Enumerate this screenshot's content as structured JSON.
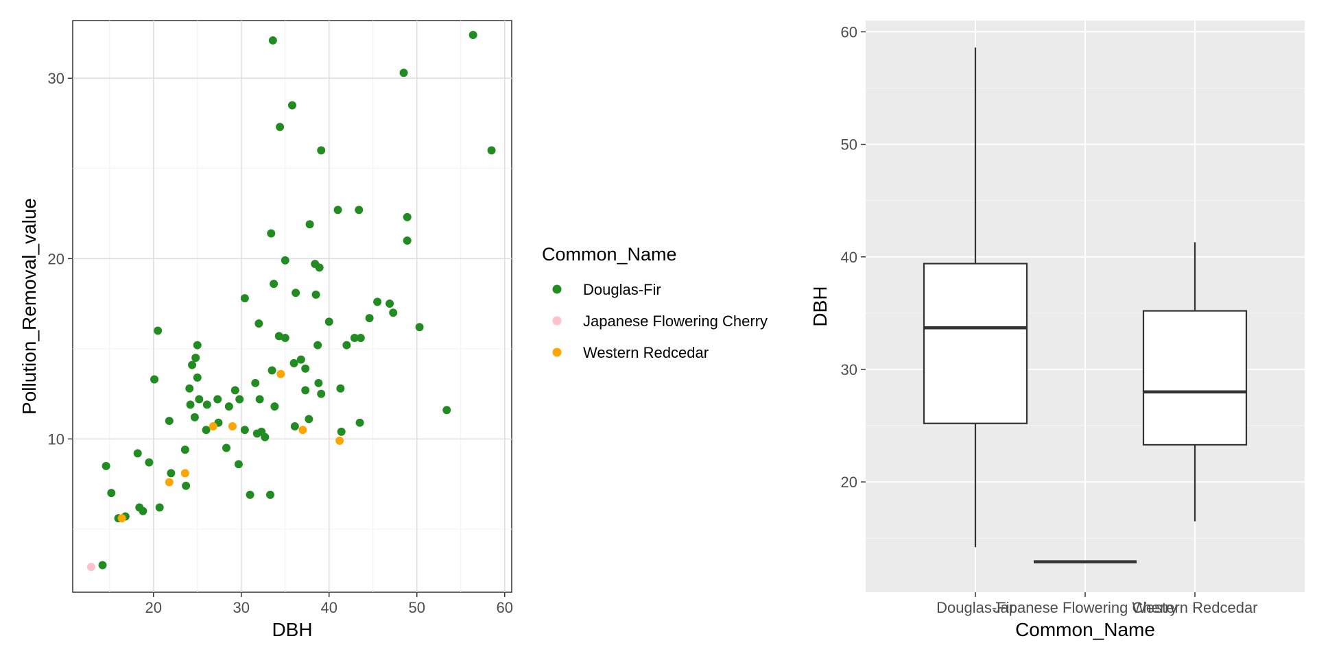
{
  "colors": {
    "Douglas-Fir": "#228B22",
    "Japanese Flowering Cherry": "#FFC0CB",
    "Western Redcedar": "#FFA500"
  },
  "chart_data": [
    {
      "type": "scatter",
      "xlabel": "DBH",
      "ylabel": "Pollution_Removal_value",
      "xlim": [
        10.8,
        60.8
      ],
      "ylim": [
        1.5,
        33.2
      ],
      "x_ticks": [
        20,
        30,
        40,
        50,
        60
      ],
      "y_ticks": [
        10,
        20,
        30
      ],
      "grid": true,
      "legend": {
        "title": "Common_Name",
        "position": "right",
        "entries": [
          "Douglas-Fir",
          "Japanese Flowering Cherry",
          "Western Redcedar"
        ]
      },
      "series": [
        {
          "name": "Douglas-Fir",
          "points": [
            [
              14.2,
              3.0
            ],
            [
              14.6,
              8.5
            ],
            [
              15.2,
              7.0
            ],
            [
              16.0,
              5.6
            ],
            [
              16.8,
              5.7
            ],
            [
              18.2,
              9.2
            ],
            [
              18.4,
              6.2
            ],
            [
              18.8,
              6.0
            ],
            [
              19.5,
              8.7
            ],
            [
              20.1,
              13.3
            ],
            [
              20.5,
              16.0
            ],
            [
              20.7,
              6.2
            ],
            [
              21.8,
              11.0
            ],
            [
              22.0,
              8.1
            ],
            [
              23.6,
              9.4
            ],
            [
              23.7,
              7.4
            ],
            [
              24.1,
              12.8
            ],
            [
              24.2,
              11.9
            ],
            [
              24.4,
              14.1
            ],
            [
              24.7,
              11.2
            ],
            [
              24.8,
              14.5
            ],
            [
              25.0,
              15.2
            ],
            [
              25.0,
              13.4
            ],
            [
              25.2,
              12.2
            ],
            [
              26.0,
              10.5
            ],
            [
              26.1,
              11.9
            ],
            [
              27.3,
              12.2
            ],
            [
              27.4,
              10.9
            ],
            [
              28.3,
              9.5
            ],
            [
              28.6,
              11.8
            ],
            [
              29.3,
              12.7
            ],
            [
              29.7,
              8.6
            ],
            [
              29.8,
              12.2
            ],
            [
              30.4,
              17.8
            ],
            [
              30.4,
              10.5
            ],
            [
              31.0,
              6.9
            ],
            [
              31.6,
              13.1
            ],
            [
              31.8,
              10.3
            ],
            [
              32.0,
              16.4
            ],
            [
              32.1,
              12.2
            ],
            [
              32.3,
              10.4
            ],
            [
              32.7,
              10.1
            ],
            [
              33.3,
              6.9
            ],
            [
              33.4,
              21.4
            ],
            [
              33.5,
              13.8
            ],
            [
              33.6,
              32.1
            ],
            [
              33.7,
              18.6
            ],
            [
              33.8,
              11.8
            ],
            [
              34.3,
              15.7
            ],
            [
              34.4,
              27.3
            ],
            [
              35.0,
              15.6
            ],
            [
              35.0,
              19.9
            ],
            [
              35.8,
              28.5
            ],
            [
              36.0,
              14.2
            ],
            [
              36.1,
              10.7
            ],
            [
              36.2,
              18.1
            ],
            [
              36.8,
              14.4
            ],
            [
              37.3,
              13.9
            ],
            [
              37.3,
              12.7
            ],
            [
              37.7,
              11.1
            ],
            [
              37.8,
              21.9
            ],
            [
              38.4,
              19.7
            ],
            [
              38.5,
              18.0
            ],
            [
              38.7,
              15.2
            ],
            [
              38.8,
              13.1
            ],
            [
              38.9,
              19.5
            ],
            [
              39.1,
              26.0
            ],
            [
              39.1,
              12.5
            ],
            [
              40.0,
              16.5
            ],
            [
              41.0,
              22.7
            ],
            [
              41.3,
              12.8
            ],
            [
              41.4,
              10.4
            ],
            [
              42.0,
              15.2
            ],
            [
              42.9,
              15.6
            ],
            [
              43.4,
              22.7
            ],
            [
              43.5,
              10.9
            ],
            [
              43.6,
              15.6
            ],
            [
              44.6,
              16.7
            ],
            [
              45.5,
              17.6
            ],
            [
              46.9,
              17.5
            ],
            [
              47.3,
              17.0
            ],
            [
              48.5,
              30.3
            ],
            [
              48.9,
              22.3
            ],
            [
              48.9,
              21.0
            ],
            [
              50.3,
              16.2
            ],
            [
              53.4,
              11.6
            ],
            [
              56.4,
              32.4
            ],
            [
              58.5,
              26.0
            ]
          ]
        },
        {
          "name": "Japanese Flowering Cherry",
          "points": [
            [
              12.9,
              2.9
            ]
          ]
        },
        {
          "name": "Western Redcedar",
          "points": [
            [
              16.4,
              5.6
            ],
            [
              21.8,
              7.6
            ],
            [
              23.6,
              8.1
            ],
            [
              26.8,
              10.7
            ],
            [
              29.0,
              10.7
            ],
            [
              34.5,
              13.6
            ],
            [
              37.0,
              10.5
            ],
            [
              41.2,
              9.9
            ]
          ]
        }
      ]
    },
    {
      "type": "box",
      "xlabel": "Common_Name",
      "ylabel": "DBH",
      "ylim": [
        10.2,
        61.0
      ],
      "y_ticks": [
        20,
        30,
        40,
        50,
        60
      ],
      "grid": true,
      "categories": [
        "Douglas-Fir",
        "Japanese Flowering Cherry",
        "Western Redcedar"
      ],
      "boxes": [
        {
          "name": "Douglas-Fir",
          "min": 14.2,
          "q1": 25.2,
          "median": 33.7,
          "q3": 39.4,
          "max": 58.6
        },
        {
          "name": "Japanese Flowering Cherry",
          "min": 12.9,
          "q1": 12.9,
          "median": 12.9,
          "q3": 12.9,
          "max": 12.9
        },
        {
          "name": "Western Redcedar",
          "min": 16.5,
          "q1": 23.3,
          "median": 28.0,
          "q3": 35.2,
          "max": 41.3
        }
      ]
    }
  ]
}
